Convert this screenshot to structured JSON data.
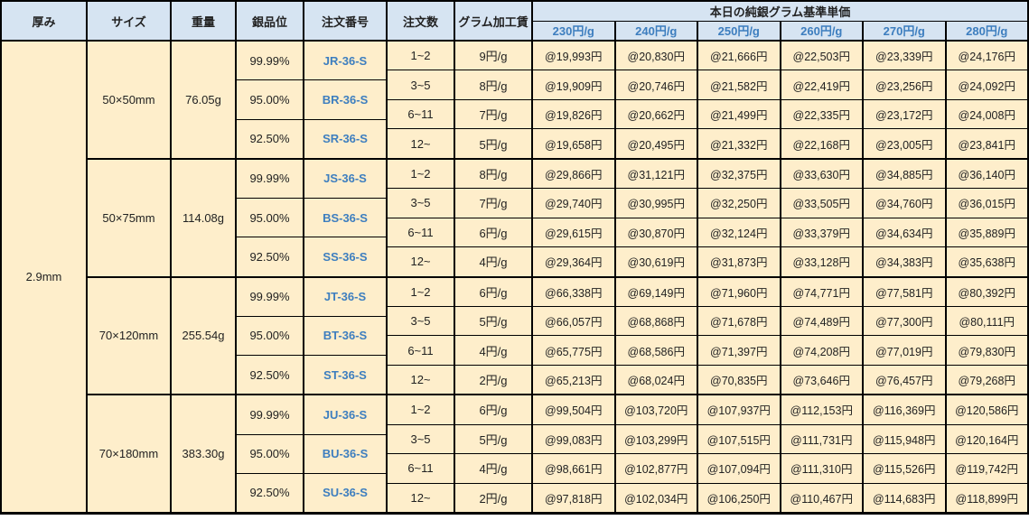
{
  "colors": {
    "header_bg": "#D6E4F2",
    "body_bg": "#FEEECB",
    "accent_blue_text": "#3D7EBF",
    "border": "#000000"
  },
  "table": {
    "headers": {
      "thickness": "厚み",
      "size": "サイズ",
      "weight": "重量",
      "purity": "銀品位",
      "order_no": "注文番号",
      "qty": "注文数",
      "fee": "グラム加工賃",
      "base_price_title": "本日の純銀グラム基準単価",
      "rates": [
        "230円/g",
        "240円/g",
        "250円/g",
        "260円/g",
        "270円/g",
        "280円/g"
      ]
    },
    "thickness_value": "2.9mm",
    "blocks": [
      {
        "size": "50×50mm",
        "weight": "76.05g",
        "variants": [
          {
            "purity": "99.99%",
            "order_no": "JR-36-S"
          },
          {
            "purity": "95.00%",
            "order_no": "BR-36-S"
          },
          {
            "purity": "92.50%",
            "order_no": "SR-36-S"
          }
        ],
        "rows": [
          {
            "qty": "1~2",
            "fee": "9円/g",
            "prices": [
              "@19,993円",
              "@20,830円",
              "@21,666円",
              "@22,503円",
              "@23,339円",
              "@24,176円"
            ]
          },
          {
            "qty": "3~5",
            "fee": "8円/g",
            "prices": [
              "@19,909円",
              "@20,746円",
              "@21,582円",
              "@22,419円",
              "@23,256円",
              "@24,092円"
            ]
          },
          {
            "qty": "6~11",
            "fee": "7円/g",
            "prices": [
              "@19,826円",
              "@20,662円",
              "@21,499円",
              "@22,335円",
              "@23,172円",
              "@24,008円"
            ]
          },
          {
            "qty": "12~",
            "fee": "5円/g",
            "prices": [
              "@19,658円",
              "@20,495円",
              "@21,332円",
              "@22,168円",
              "@23,005円",
              "@23,841円"
            ]
          }
        ]
      },
      {
        "size": "50×75mm",
        "weight": "114.08g",
        "variants": [
          {
            "purity": "99.99%",
            "order_no": "JS-36-S"
          },
          {
            "purity": "95.00%",
            "order_no": "BS-36-S"
          },
          {
            "purity": "92.50%",
            "order_no": "SS-36-S"
          }
        ],
        "rows": [
          {
            "qty": "1~2",
            "fee": "8円/g",
            "prices": [
              "@29,866円",
              "@31,121円",
              "@32,375円",
              "@33,630円",
              "@34,885円",
              "@36,140円"
            ]
          },
          {
            "qty": "3~5",
            "fee": "7円/g",
            "prices": [
              "@29,740円",
              "@30,995円",
              "@32,250円",
              "@33,505円",
              "@34,760円",
              "@36,015円"
            ]
          },
          {
            "qty": "6~11",
            "fee": "6円/g",
            "prices": [
              "@29,615円",
              "@30,870円",
              "@32,124円",
              "@33,379円",
              "@34,634円",
              "@35,889円"
            ]
          },
          {
            "qty": "12~",
            "fee": "4円/g",
            "prices": [
              "@29,364円",
              "@30,619円",
              "@31,873円",
              "@33,128円",
              "@34,383円",
              "@35,638円"
            ]
          }
        ]
      },
      {
        "size": "70×120mm",
        "weight": "255.54g",
        "variants": [
          {
            "purity": "99.99%",
            "order_no": "JT-36-S"
          },
          {
            "purity": "95.00%",
            "order_no": "BT-36-S"
          },
          {
            "purity": "92.50%",
            "order_no": "ST-36-S"
          }
        ],
        "rows": [
          {
            "qty": "1~2",
            "fee": "6円/g",
            "prices": [
              "@66,338円",
              "@69,149円",
              "@71,960円",
              "@74,771円",
              "@77,581円",
              "@80,392円"
            ]
          },
          {
            "qty": "3~5",
            "fee": "5円/g",
            "prices": [
              "@66,057円",
              "@68,868円",
              "@71,678円",
              "@74,489円",
              "@77,300円",
              "@80,111円"
            ]
          },
          {
            "qty": "6~11",
            "fee": "4円/g",
            "prices": [
              "@65,775円",
              "@68,586円",
              "@71,397円",
              "@74,208円",
              "@77,019円",
              "@79,830円"
            ]
          },
          {
            "qty": "12~",
            "fee": "2円/g",
            "prices": [
              "@65,213円",
              "@68,024円",
              "@70,835円",
              "@73,646円",
              "@76,457円",
              "@79,268円"
            ]
          }
        ]
      },
      {
        "size": "70×180mm",
        "weight": "383.30g",
        "variants": [
          {
            "purity": "99.99%",
            "order_no": "JU-36-S"
          },
          {
            "purity": "95.00%",
            "order_no": "BU-36-S"
          },
          {
            "purity": "92.50%",
            "order_no": "SU-36-S"
          }
        ],
        "rows": [
          {
            "qty": "1~2",
            "fee": "6円/g",
            "prices": [
              "@99,504円",
              "@103,720円",
              "@107,937円",
              "@112,153円",
              "@116,369円",
              "@120,586円"
            ]
          },
          {
            "qty": "3~5",
            "fee": "5円/g",
            "prices": [
              "@99,083円",
              "@103,299円",
              "@107,515円",
              "@111,731円",
              "@115,948円",
              "@120,164円"
            ]
          },
          {
            "qty": "6~11",
            "fee": "4円/g",
            "prices": [
              "@98,661円",
              "@102,877円",
              "@107,094円",
              "@111,310円",
              "@115,526円",
              "@119,742円"
            ]
          },
          {
            "qty": "12~",
            "fee": "2円/g",
            "prices": [
              "@97,818円",
              "@102,034円",
              "@106,250円",
              "@110,467円",
              "@114,683円",
              "@118,899円"
            ]
          }
        ]
      }
    ]
  }
}
